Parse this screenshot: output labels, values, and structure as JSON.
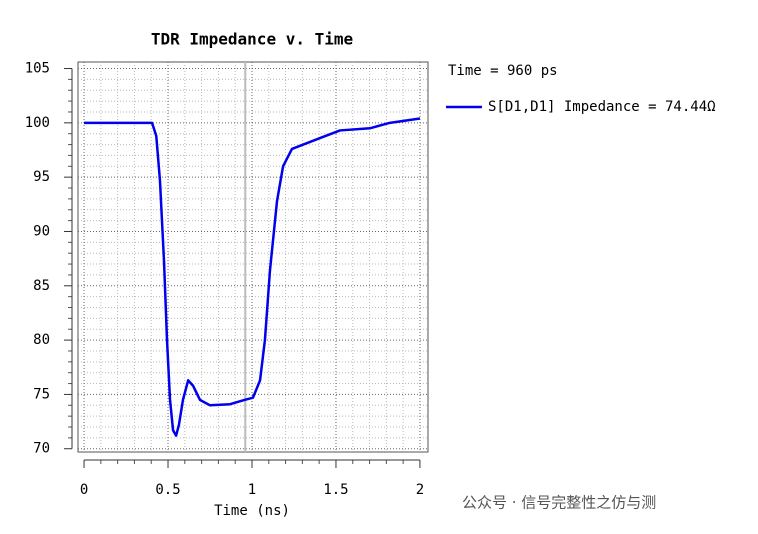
{
  "chart_data": {
    "type": "line",
    "title": "TDR Impedance v. Time",
    "xlabel": "Time (ns)",
    "x": [
      0,
      0.405,
      0.43,
      0.452,
      0.476,
      0.494,
      0.512,
      0.53,
      0.548,
      0.565,
      0.589,
      0.62,
      0.649,
      0.69,
      0.75,
      0.869,
      0.958,
      1.006,
      1.048,
      1.077,
      1.107,
      1.149,
      1.185,
      1.238,
      1.405,
      1.524,
      1.702,
      1.821,
      2.0
    ],
    "series": [
      {
        "name": "S[D1,D1] Impedance = 74.44Ω",
        "color": "#0000ee",
        "values": [
          100,
          100,
          98.8,
          94.7,
          87.3,
          80,
          74.5,
          71.7,
          71.2,
          72.2,
          74.5,
          76.3,
          75.8,
          74.5,
          74.0,
          74.1,
          74.5,
          74.7,
          76.3,
          80,
          86.4,
          92.8,
          96.0,
          97.6,
          98.6,
          99.3,
          99.5,
          100,
          100.4
        ]
      }
    ],
    "cursor_label": "Time = 960 ps",
    "cursor_x": 0.96,
    "xlim": [
      -0.036,
      2.048
    ],
    "ylim": [
      69.7,
      105.6
    ],
    "xticks": [
      0,
      0.5,
      1,
      1.5,
      2
    ],
    "yticks": [
      70,
      75,
      80,
      85,
      90,
      95,
      100,
      105
    ],
    "xminor": [
      0.1,
      0.2,
      0.3,
      0.4,
      0.6,
      0.7,
      0.8,
      0.9,
      1.1,
      1.2,
      1.3,
      1.4,
      1.6,
      1.7,
      1.8,
      1.9
    ],
    "yminor": [
      71,
      72,
      73,
      74,
      76,
      77,
      78,
      79,
      81,
      82,
      83,
      84,
      86,
      87,
      88,
      89,
      91,
      92,
      93,
      94,
      96,
      97,
      98,
      99,
      101,
      102,
      103,
      104
    ],
    "grid": true,
    "watermark": "公众号 · 信号完整性之仿与测"
  }
}
